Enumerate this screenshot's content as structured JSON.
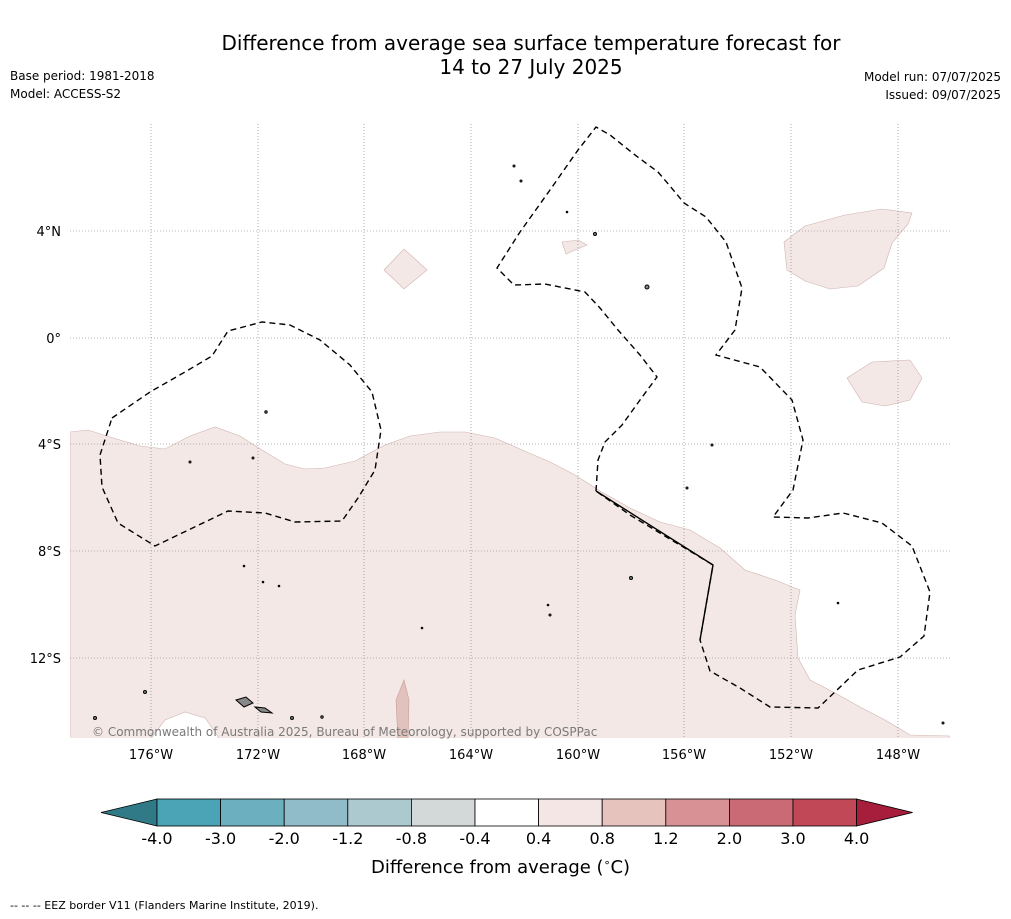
{
  "title_line1": "Difference from average sea surface temperature forecast for",
  "title_line2": "14 to 27 July 2025",
  "base_period": "Base period: 1981-2018",
  "model": "Model: ACCESS-S2",
  "model_run": "Model run: 07/07/2025",
  "issued": "Issued: 09/07/2025",
  "copyright": "© Commonwealth of Australia 2025, Bureau of Meteorology, supported by COSPPac",
  "lat_labels": [
    "4°N",
    "0°",
    "4°S",
    "8°S",
    "12°S"
  ],
  "lon_labels": [
    "176°W",
    "172°W",
    "168°W",
    "164°W",
    "160°W",
    "156°W",
    "152°W",
    "148°W"
  ],
  "colorbar": {
    "ticks": [
      "-4.0",
      "-3.0",
      "-2.0",
      "-1.2",
      "-0.8",
      "-0.4",
      "0.4",
      "0.8",
      "1.2",
      "2.0",
      "3.0",
      "4.0"
    ],
    "colors": [
      "#2f7a86",
      "#4aa4b5",
      "#6cb0bf",
      "#8fbcc8",
      "#acc9cf",
      "#d2d9d8",
      "#ffffff",
      "#f4e6e4",
      "#e6c3bd",
      "#d89296",
      "#c96a75",
      "#c04857",
      "#a71e3c"
    ],
    "label": "Difference from average (",
    "label_unit": "C)",
    "label_degree": "∘"
  },
  "footnote": "--  --  -- EEZ border V11 (Flanders Marine Institute, 2019)."
}
